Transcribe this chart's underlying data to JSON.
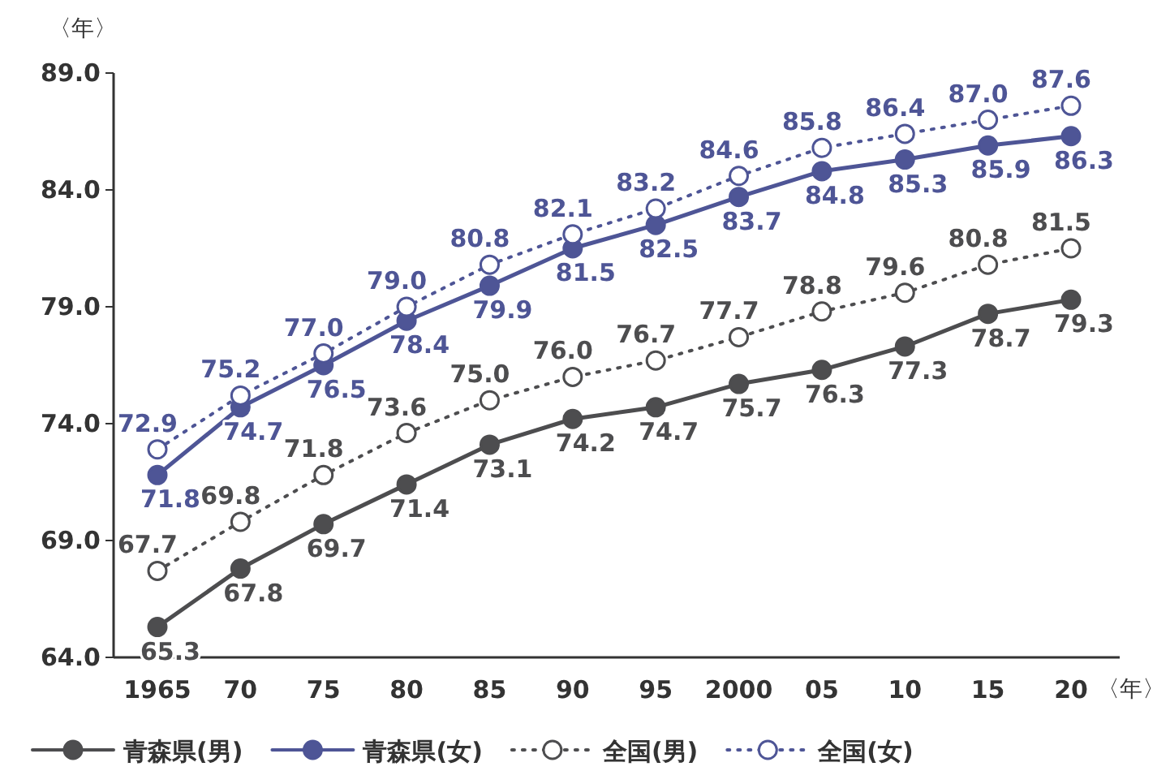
{
  "chart_data": {
    "type": "line",
    "ylabel": "〈年〉",
    "xlabel": "〈年〉",
    "categories": [
      "1965",
      "70",
      "75",
      "80",
      "85",
      "90",
      "95",
      "2000",
      "05",
      "10",
      "15",
      "20"
    ],
    "ylim": [
      64,
      89
    ],
    "yticks": [
      {
        "value": 64,
        "label": "64.0"
      },
      {
        "value": 69,
        "label": "69.0"
      },
      {
        "value": 74,
        "label": "74.0"
      },
      {
        "value": 79,
        "label": "79.0"
      },
      {
        "value": 84,
        "label": "84.0"
      },
      {
        "value": 89,
        "label": "89.0"
      }
    ],
    "legend": "bottom",
    "marker": "circle",
    "series": [
      {
        "name": "青森県(男)",
        "color": "#4d4d4f",
        "line_style": "solid",
        "values": [
          65.3,
          67.8,
          69.7,
          71.4,
          73.1,
          74.2,
          74.7,
          75.7,
          76.3,
          77.3,
          78.7,
          79.3
        ],
        "value_labels": [
          "65.3",
          "67.8",
          "69.7",
          "71.4",
          "73.1",
          "74.2",
          "74.7",
          "75.7",
          "76.3",
          "77.3",
          "78.7",
          "79.3"
        ]
      },
      {
        "name": "青森県(女)",
        "color": "#4e5596",
        "line_style": "solid",
        "values": [
          71.8,
          74.7,
          76.5,
          78.4,
          79.9,
          81.5,
          82.5,
          83.7,
          84.8,
          85.3,
          85.9,
          86.3
        ],
        "value_labels": [
          "71.8",
          "74.7",
          "76.5",
          "78.4",
          "79.9",
          "81.5",
          "82.5",
          "83.7",
          "84.8",
          "85.3",
          "85.9",
          "86.3"
        ]
      },
      {
        "name": "全国(男)",
        "color": "#4d4d4f",
        "line_style": "dotted",
        "values": [
          67.7,
          69.8,
          71.8,
          73.6,
          75.0,
          76.0,
          76.7,
          77.7,
          78.8,
          79.6,
          80.8,
          81.5
        ],
        "value_labels": [
          "67.7",
          "69.8",
          "71.8",
          "73.6",
          "75.0",
          "76.0",
          "76.7",
          "77.7",
          "78.8",
          "79.6",
          "80.8",
          "81.5"
        ]
      },
      {
        "name": "全国(女)",
        "color": "#4e5596",
        "line_style": "dotted",
        "values": [
          72.9,
          75.2,
          77.0,
          79.0,
          80.8,
          82.1,
          83.2,
          84.6,
          85.8,
          86.4,
          87.0,
          87.6
        ],
        "value_labels": [
          "72.9",
          "75.2",
          "77.0",
          "79.0",
          "80.8",
          "82.1",
          "83.2",
          "84.6",
          "85.8",
          "86.4",
          "87.0",
          "87.6"
        ]
      }
    ]
  }
}
